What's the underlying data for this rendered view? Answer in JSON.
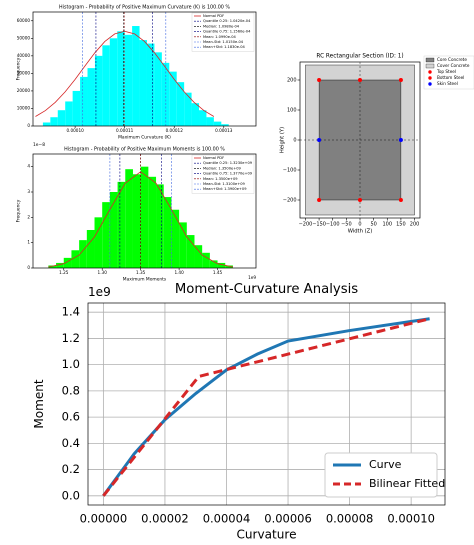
{
  "chart_data": [
    {
      "type": "histogram",
      "title": "Histogram - Probability of Positive Maximum Curvature (K) is 100.00 %",
      "xlabel": "Maximum Curvature (K)",
      "ylabel": "Frequency",
      "color": "#00ffff",
      "bins": [
        9.35e-05,
        9.5e-05,
        9.65e-05,
        9.8e-05,
        9.95e-05,
        0.000101,
        0.0001025,
        0.000104,
        0.0001055,
        0.000107,
        0.0001085,
        0.00011,
        0.0001115,
        0.000113,
        0.0001145,
        0.000116,
        0.0001175,
        0.000119,
        0.0001205,
        0.000122,
        0.0001235,
        0.000125,
        0.0001265,
        0.000128,
        0.0001295,
        0.000131
      ],
      "counts": [
        2000,
        5000,
        9000,
        14000,
        20000,
        28000,
        33000,
        40000,
        46000,
        50000,
        54000,
        52000,
        57000,
        49000,
        47000,
        42000,
        36000,
        31000,
        25000,
        19000,
        13000,
        9000,
        5000,
        2500,
        1000
      ],
      "xlim": [
        9.15e-05,
        0.0001365
      ],
      "ylim": [
        0,
        65000
      ],
      "xticks": [
        {
          "value": 0.0001,
          "label": "0.00010"
        },
        {
          "value": 0.00011,
          "label": "0.00011"
        },
        {
          "value": 0.00012,
          "label": "0.00012"
        },
        {
          "value": 0.00013,
          "label": "0.00013"
        }
      ],
      "yticks": [
        0,
        10000,
        20000,
        30000,
        40000,
        50000,
        60000
      ],
      "pdf": {
        "name": "Normal PDF",
        "color": "#d62728",
        "x": [
          9.2e-05,
          9.4e-05,
          9.6e-05,
          9.8e-05,
          0.0001,
          0.000102,
          0.000104,
          0.000106,
          0.000108,
          0.00011,
          0.000112,
          0.000114,
          0.000116,
          0.000118,
          0.00012,
          0.000122,
          0.000124,
          0.000126,
          0.000128
        ],
        "values": [
          5400,
          8800,
          13500,
          19500,
          26600,
          34300,
          41800,
          48200,
          52500,
          54000,
          52500,
          48200,
          41800,
          34300,
          26600,
          19500,
          13500,
          8800,
          5400
        ]
      },
      "lines": [
        {
          "name": "Quantile 0.25: 1.0420e-04",
          "value": 0.0001042,
          "color": "#000080"
        },
        {
          "name": "Median: 1.0980e-04",
          "value": 0.0001098,
          "color": "#000000"
        },
        {
          "name": "Quantile 0.75: 1.1560e-04",
          "value": 0.0001156,
          "color": "#000080"
        },
        {
          "name": "Mean: 1.0990e-04",
          "value": 0.0001099,
          "color": "#8b0000"
        },
        {
          "name": "Mean-Std: 1.0150e-04",
          "value": 0.0001015,
          "color": "#4169e1"
        },
        {
          "name": "Mean+Std: 1.1830e-04",
          "value": 0.0001183,
          "color": "#4169e1"
        }
      ]
    },
    {
      "type": "histogram",
      "title": "Histogram - Probability of Positive Maximum Moments is 100.00 %",
      "xlabel": "Maximum Moments",
      "ylabel": "Frequency",
      "x_offset_label": "1e9",
      "y_offset_label": "1e−8",
      "color": "#00ff00",
      "bins": [
        1.23,
        1.24,
        1.25,
        1.26,
        1.27,
        1.28,
        1.29,
        1.3,
        1.31,
        1.32,
        1.33,
        1.34,
        1.35,
        1.36,
        1.37,
        1.38,
        1.39,
        1.4,
        1.41,
        1.42,
        1.43,
        1.44,
        1.45,
        1.46,
        1.47
      ],
      "counts": [
        0.1,
        0.2,
        0.4,
        0.7,
        1.1,
        1.5,
        2.0,
        2.6,
        3.0,
        3.4,
        3.9,
        3.7,
        4.0,
        3.6,
        3.3,
        2.8,
        2.3,
        1.8,
        1.3,
        0.9,
        0.6,
        0.3,
        0.2,
        0.1
      ],
      "xlim": [
        1.21,
        1.5
      ],
      "ylim": [
        0,
        4.5
      ],
      "xticks": [
        1.25,
        {
          "value": 1.3,
          "label": "1.30"
        },
        1.35,
        {
          "value": 1.4,
          "label": "1.40"
        },
        1.45
      ],
      "yticks": [
        0,
        1,
        2,
        3,
        4
      ],
      "pdf": {
        "name": "Normal PDF",
        "color": "#d62728",
        "x": [
          1.23,
          1.25,
          1.27,
          1.29,
          1.31,
          1.33,
          1.35,
          1.37,
          1.39,
          1.41,
          1.43,
          1.45,
          1.47
        ],
        "values": [
          0.04,
          0.17,
          0.51,
          1.23,
          2.31,
          3.35,
          3.8,
          3.35,
          2.31,
          1.23,
          0.51,
          0.17,
          0.04
        ]
      },
      "lines": [
        {
          "name": "Quantile 0.25: 1.3230e+09",
          "value": 1.323,
          "color": "#000080"
        },
        {
          "name": "Median: 1.3500e+09",
          "value": 1.35,
          "color": "#000000"
        },
        {
          "name": "Quantile 0.75: 1.3770e+09",
          "value": 1.377,
          "color": "#000080"
        },
        {
          "name": "Mean: 1.3500e+09",
          "value": 1.35,
          "color": "#8b0000"
        },
        {
          "name": "Mean-Std: 1.3100e+09",
          "value": 1.31,
          "color": "#4169e1"
        },
        {
          "name": "Mean+Std: 1.3900e+09",
          "value": 1.39,
          "color": "#4169e1"
        }
      ]
    },
    {
      "type": "section",
      "title": "RC Rectangular Section (ID: 1)",
      "xlabel": "Width (Z)",
      "ylabel": "Height (Y)",
      "xlim": [
        -220,
        220
      ],
      "ylim": [
        -260,
        260
      ],
      "xticks": [
        {
          "value": -200,
          "label": "−200"
        },
        {
          "value": -150,
          "label": "−150"
        },
        {
          "value": -100,
          "label": "−100"
        },
        {
          "value": -50,
          "label": "−50"
        },
        0,
        50,
        100,
        150,
        200
      ],
      "yticks": [
        {
          "value": -200,
          "label": "−200"
        },
        {
          "value": -100,
          "label": "−100"
        },
        0,
        100,
        200
      ],
      "rects": [
        {
          "name": "Core Concrete",
          "color": "#808080",
          "x": [
            -150,
            150
          ],
          "y": [
            -200,
            200
          ]
        },
        {
          "name": "Cover Concrete",
          "color": "#d3d3d3",
          "x": [
            -200,
            200
          ],
          "y": [
            -250,
            250
          ]
        }
      ],
      "points": [
        {
          "name": "Top Steel",
          "color": "#ff0000",
          "x": [
            -150,
            0,
            150
          ],
          "y": [
            200,
            200,
            200
          ]
        },
        {
          "name": "Bottom Steel",
          "color": "#ff0000",
          "x": [
            -150,
            0,
            150
          ],
          "y": [
            -200,
            -200,
            -200
          ]
        },
        {
          "name": "Skin Steel",
          "color": "#0000ff",
          "x": [
            -150,
            150
          ],
          "y": [
            0,
            0
          ]
        }
      ]
    },
    {
      "type": "line",
      "title": "Moment-Curvature Analysis",
      "xlabel": "Curvature",
      "ylabel": "Moment",
      "y_offset_label": "1e9",
      "xlim": [
        -5e-06,
        0.000111
      ],
      "ylim": [
        -0.07,
        1.47
      ],
      "xticks": [
        {
          "value": 0,
          "label": "0.00000"
        },
        {
          "value": 2e-05,
          "label": "0.00002"
        },
        {
          "value": 4e-05,
          "label": "0.00004"
        },
        {
          "value": 6e-05,
          "label": "0.00006"
        },
        {
          "value": 8e-05,
          "label": "0.00008"
        },
        {
          "value": 0.0001,
          "label": "0.00010"
        }
      ],
      "yticks": [
        {
          "value": 0,
          "label": "0.0"
        },
        0.2,
        0.4,
        0.6,
        0.8,
        {
          "value": 1,
          "label": "1.0"
        },
        1.2,
        1.4
      ],
      "grid": true,
      "legend": "lower right",
      "series": [
        {
          "name": "Curve",
          "color": "#1f77b4",
          "dash": false,
          "x": [
            0,
            1e-05,
            2e-05,
            3e-05,
            4e-05,
            5e-05,
            6e-05,
            8e-05,
            0.000106
          ],
          "values": [
            0,
            0.32,
            0.58,
            0.78,
            0.96,
            1.08,
            1.18,
            1.26,
            1.35
          ]
        },
        {
          "name": "Bilinear Fitted",
          "color": "#d62728",
          "dash": true,
          "x": [
            0,
            3.1e-05,
            0.000106
          ],
          "values": [
            0,
            0.91,
            1.35
          ]
        }
      ]
    }
  ]
}
